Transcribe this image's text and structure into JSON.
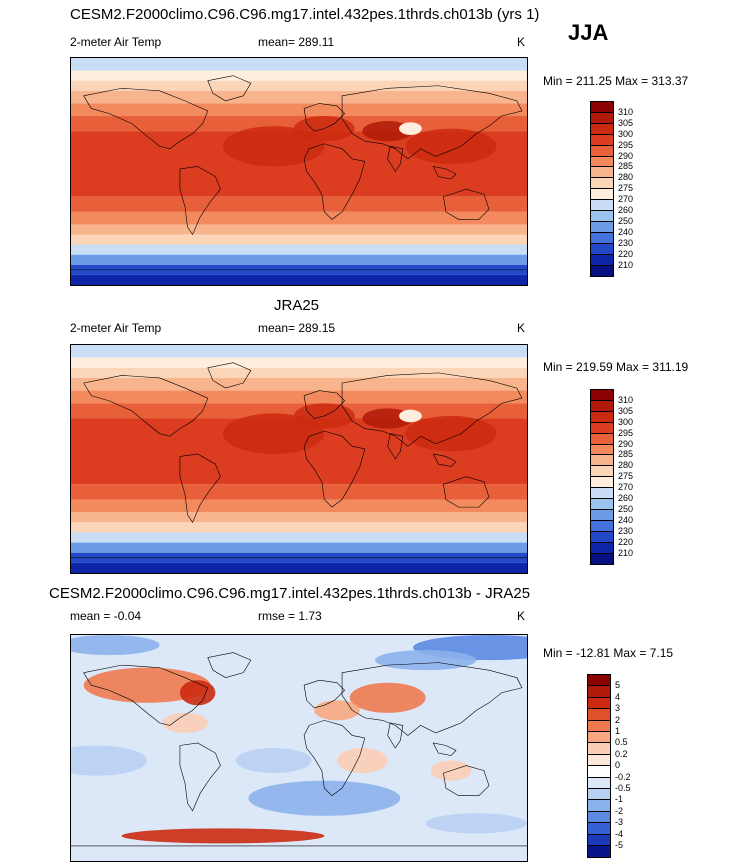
{
  "season_label": "JJA",
  "panels": [
    {
      "title": "CESM2.F2000climo.C96.C96.mg17.intel.432pes.1thrds.ch013b (yrs 1)",
      "left_label": "2-meter Air Temp",
      "center_label": "mean= 289.11",
      "units": "K",
      "range_label": "Min = 211.25 Max = 313.37",
      "colorbar": {
        "labels": [
          "310",
          "305",
          "300",
          "295",
          "290",
          "285",
          "280",
          "275",
          "270",
          "260",
          "250",
          "240",
          "230",
          "220",
          "210"
        ],
        "colors": [
          "#8b0000",
          "#b01a0a",
          "#cc2a10",
          "#dc3d20",
          "#e8603a",
          "#f28a5e",
          "#f8b48c",
          "#fbd5b8",
          "#ffeedd",
          "#c9def4",
          "#9cc2ee",
          "#6c9ce6",
          "#4472dc",
          "#2348c8",
          "#0f25a8",
          "#071080"
        ]
      }
    },
    {
      "title": "JRA25",
      "left_label": "2-meter Air Temp",
      "center_label": "mean= 289.15",
      "units": "K",
      "range_label": "Min = 219.59 Max = 311.19",
      "colorbar": {
        "labels": [
          "310",
          "305",
          "300",
          "295",
          "290",
          "285",
          "280",
          "275",
          "270",
          "260",
          "250",
          "240",
          "230",
          "220",
          "210"
        ],
        "colors": [
          "#8b0000",
          "#b01a0a",
          "#cc2a10",
          "#dc3d20",
          "#e8603a",
          "#f28a5e",
          "#f8b48c",
          "#fbd5b8",
          "#ffeedd",
          "#c9def4",
          "#9cc2ee",
          "#6c9ce6",
          "#4472dc",
          "#2348c8",
          "#0f25a8",
          "#071080"
        ]
      }
    },
    {
      "title": "CESM2.F2000climo.C96.C96.mg17.intel.432pes.1thrds.ch013b - JRA25",
      "left_label": "mean =  -0.04",
      "center_label": "rmse =   1.73",
      "units": "K",
      "range_label": "Min = -12.81 Max =   7.15",
      "colorbar": {
        "labels": [
          "5",
          "4",
          "3",
          "2",
          "1",
          "0.5",
          "0.2",
          "0",
          "-0.2",
          "-0.5",
          "-1",
          "-2",
          "-3",
          "-4",
          "-5"
        ],
        "colors": [
          "#8b0000",
          "#b01a0a",
          "#cc2a10",
          "#e0502c",
          "#f07a50",
          "#f8a880",
          "#fbcdb4",
          "#fde8dc",
          "#ffffff",
          "#dce8f8",
          "#b8d0f2",
          "#8cb2ec",
          "#5c8ae2",
          "#3462d4",
          "#1a3ab8",
          "#08168a"
        ]
      }
    }
  ]
}
